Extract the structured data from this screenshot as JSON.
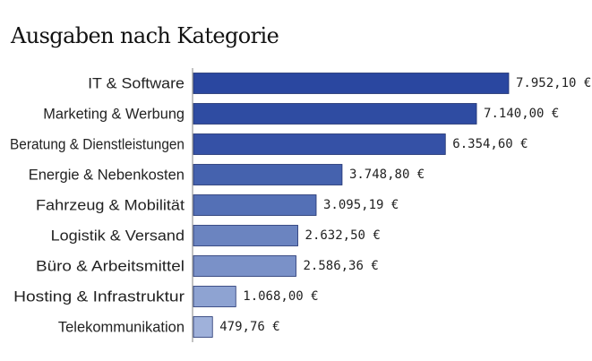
{
  "chart_data": {
    "type": "bar",
    "orientation": "horizontal",
    "title": "Ausgaben nach Kategorie",
    "xlabel": "",
    "ylabel": "",
    "grid": false,
    "legend": "none",
    "unit": "€",
    "categories": [
      "IT & Software",
      "Marketing & Werbung",
      "Beratung & Dienstleistungen",
      "Energie & Nebenkosten",
      "Fahrzeug & Mobilität",
      "Logistik & Versand",
      "Büro & Arbeitsmittel",
      "Hosting & Infrastruktur",
      "Telekommunikation"
    ],
    "values": [
      7952.1,
      7140.0,
      6354.6,
      3748.8,
      3095.19,
      2632.5,
      2586.36,
      1068.0,
      479.76
    ],
    "value_labels": [
      "7.952,10 €",
      "7.140,00 €",
      "6.354,60 €",
      "3.748,80 €",
      "3.095,19 €",
      "2.632,50 €",
      "2.586,36 €",
      "1.068,00 €",
      "479,76 €"
    ],
    "colors": [
      "#2a47a0",
      "#2f4ca2",
      "#3551a6",
      "#4562ae",
      "#5470b6",
      "#6b84c0",
      "#7a91c8",
      "#8ea3d2",
      "#9fb1da"
    ],
    "bar_edge_color": "#1f3170",
    "axis_color": "#9a9a9a"
  }
}
